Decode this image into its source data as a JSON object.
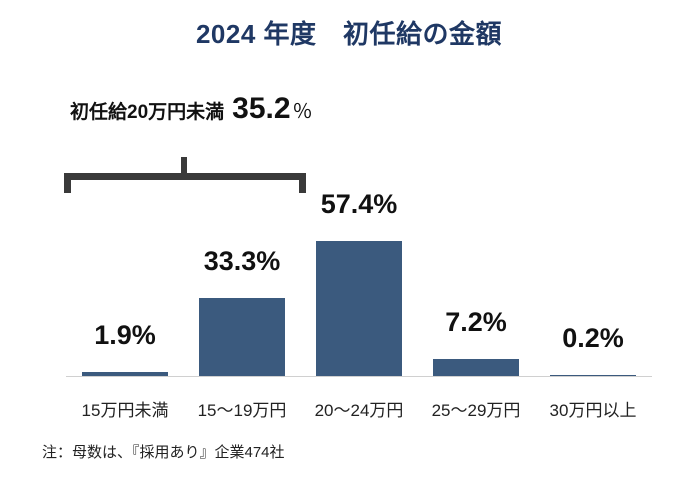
{
  "title": "2024 年度　初任給の金額",
  "summary": {
    "label": "初任給20万円未満",
    "value": "35.2",
    "unit": "％"
  },
  "note": "注：母数は、『採用あり』企業474社",
  "labels": [
    "1.9%",
    "33.3%",
    "57.4%",
    "7.2%",
    "0.2%"
  ],
  "categories": [
    "15万円未満",
    "15～19万円",
    "20～24万円",
    "25～29万円",
    "30万円以上"
  ],
  "colors": {
    "bar": "#3b5a7e",
    "title": "#1f3864"
  },
  "chart_data": {
    "type": "bar",
    "title": "2024 年度　初任給の金額",
    "categories": [
      "15万円未満",
      "15～19万円",
      "20～24万円",
      "25～29万円",
      "30万円以上"
    ],
    "values": [
      1.9,
      33.3,
      57.4,
      7.2,
      0.2
    ],
    "unit": "%",
    "xlabel": "",
    "ylabel": "",
    "ylim": [
      0,
      60
    ],
    "grid": false,
    "legend": null,
    "annotations": [
      {
        "text": "初任給20万円未満 35.2％",
        "spans": [
          "15万円未満",
          "15～19万円"
        ]
      }
    ],
    "note": "注：母数は、『採用あり』企業474社"
  }
}
